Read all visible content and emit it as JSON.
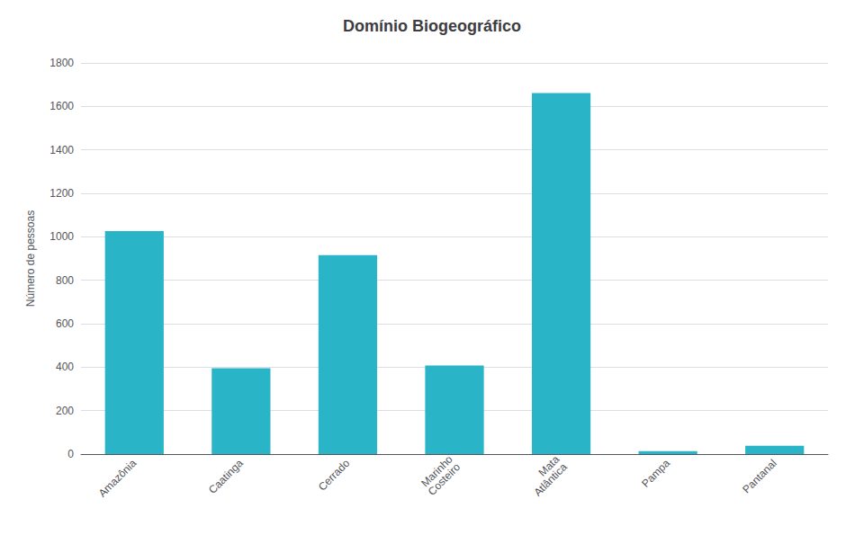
{
  "chart_data": {
    "type": "bar",
    "title": "Domínio Biogeográfico",
    "ylabel": "Número de pessoas",
    "categories": [
      "Amazônia",
      "Caatinga",
      "Cerrado",
      "Marinho\nCosteiro",
      "Mata\nAtlântica",
      "Pampa",
      "Pantanal"
    ],
    "values": [
      1026,
      395,
      916,
      408,
      1661,
      13,
      38
    ],
    "color": "#29b4c8",
    "ylim": [
      0,
      1800
    ],
    "yticks": [
      0,
      200,
      400,
      600,
      800,
      1000,
      1200,
      1400,
      1600,
      1800
    ],
    "grid": true
  }
}
